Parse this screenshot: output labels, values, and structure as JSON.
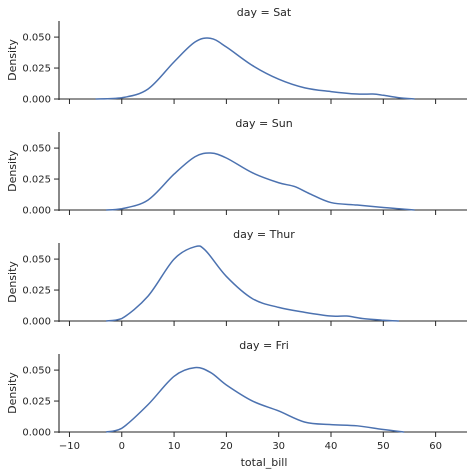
{
  "chart_data": {
    "type": "line",
    "subtype": "kde-facet-grid",
    "xlabel": "total_bill",
    "ylabel": "Density",
    "xlim": [
      -12,
      66
    ],
    "ylim": [
      0,
      0.063
    ],
    "xticks": [
      -10,
      0,
      10,
      20,
      30,
      40,
      50,
      60
    ],
    "yticks": [
      0.0,
      0.025,
      0.05
    ],
    "ytick_labels": [
      "0.000",
      "0.025",
      "0.050"
    ],
    "line_color": "#4c72b0",
    "grid": false,
    "panels": [
      {
        "title": "day = Sat",
        "x": [
          -5,
          0,
          5,
          10,
          14,
          17,
          20,
          25,
          30,
          35,
          40,
          45,
          48,
          50,
          53,
          56
        ],
        "y": [
          0.0,
          0.001,
          0.008,
          0.03,
          0.046,
          0.049,
          0.042,
          0.027,
          0.016,
          0.009,
          0.006,
          0.004,
          0.004,
          0.003,
          0.001,
          0.0
        ]
      },
      {
        "title": "day = Sun",
        "x": [
          -3,
          0,
          5,
          10,
          14,
          17,
          20,
          25,
          30,
          33,
          36,
          40,
          45,
          50,
          53,
          56
        ],
        "y": [
          0.0,
          0.001,
          0.008,
          0.029,
          0.043,
          0.046,
          0.042,
          0.03,
          0.022,
          0.019,
          0.013,
          0.006,
          0.004,
          0.002,
          0.001,
          0.0
        ]
      },
      {
        "title": "day = Thur",
        "x": [
          -3,
          0,
          5,
          10,
          14,
          16,
          20,
          25,
          30,
          35,
          40,
          43,
          46,
          50,
          53
        ],
        "y": [
          0.0,
          0.002,
          0.02,
          0.05,
          0.06,
          0.057,
          0.036,
          0.018,
          0.011,
          0.007,
          0.004,
          0.004,
          0.002,
          0.0006,
          0.0
        ]
      },
      {
        "title": "day = Fri",
        "x": [
          -3,
          0,
          5,
          10,
          14,
          17,
          20,
          25,
          30,
          35,
          40,
          45,
          50,
          54
        ],
        "y": [
          0.0,
          0.003,
          0.022,
          0.045,
          0.052,
          0.048,
          0.038,
          0.025,
          0.017,
          0.008,
          0.006,
          0.005,
          0.002,
          0.0
        ]
      }
    ]
  }
}
